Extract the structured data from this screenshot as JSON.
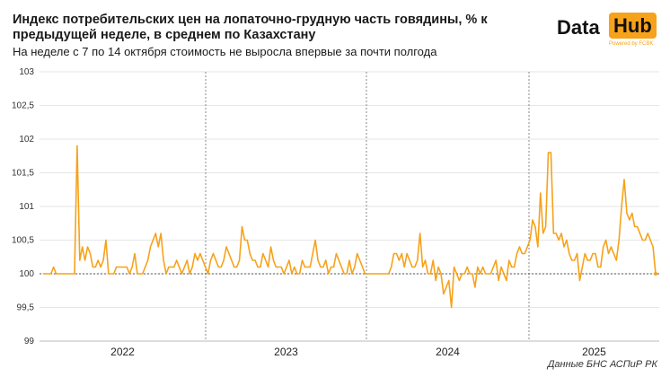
{
  "title": "Индекс потребительских цен на лопаточно-грудную часть говядины, % к предыдущей неделе, в среднем по Казахстану",
  "subtitle": "На неделе с 7 по 14 октября стоимость не выросла впервые за почти полгода",
  "logo": {
    "data": "Data",
    "hub": "Hub",
    "powered": "Powered by FCBK"
  },
  "source": "Данные БНС АСПиР РК",
  "colors": {
    "line": "#f6a21a",
    "grid": "#e6e6e6",
    "separator": "#888888",
    "ref": "#555555"
  },
  "chart_data": {
    "type": "line",
    "title": "Индекс потребительских цен на лопаточно-грудную часть говядины, % к предыдущей неделе, в среднем по Казахстану",
    "ylim": [
      99,
      103
    ],
    "yticks": [
      "99",
      "99,5",
      "100",
      "100,5",
      "101",
      "101,5",
      "102",
      "102,5",
      "103"
    ],
    "ytick_values": [
      99,
      99.5,
      100,
      100.5,
      101,
      101.5,
      102,
      102.5,
      103
    ],
    "reference_line": 100,
    "years": [
      "2022",
      "2023",
      "2024",
      "2025"
    ],
    "grid": true,
    "series": [
      {
        "values": [
          100.0,
          100.0,
          100.0,
          100.0,
          100.1,
          100.0,
          100.0,
          100.0,
          100.0,
          100.0,
          100.0,
          100.0,
          100.0,
          101.9,
          100.2,
          100.4,
          100.2,
          100.4,
          100.3,
          100.1,
          100.1,
          100.2,
          100.1,
          100.2,
          100.5,
          100.0,
          100.0,
          100.0,
          100.1,
          100.1,
          100.1,
          100.1,
          100.1,
          100.0,
          100.1,
          100.3,
          100.0,
          100.0,
          100.0,
          100.1,
          100.2,
          100.4,
          100.5,
          100.6,
          100.4,
          100.6,
          100.2,
          100.0,
          100.1,
          100.1,
          100.1,
          100.2,
          100.1,
          100.0,
          100.1,
          100.2,
          100.0,
          100.1,
          100.3,
          100.2,
          100.3,
          100.2,
          100.1,
          100.0,
          100.2,
          100.3,
          100.2,
          100.1,
          100.1,
          100.2,
          100.4,
          100.3,
          100.2,
          100.1,
          100.1,
          100.2,
          100.7,
          100.5,
          100.5,
          100.3,
          100.2,
          100.2,
          100.1,
          100.1,
          100.3,
          100.2,
          100.1,
          100.4,
          100.2,
          100.1,
          100.1,
          100.1,
          100.0,
          100.1,
          100.2,
          100.0,
          100.1,
          100.0,
          100.0,
          100.2,
          100.1,
          100.1,
          100.1,
          100.3,
          100.5,
          100.2,
          100.1,
          100.1,
          100.2,
          100.0,
          100.1,
          100.1,
          100.3,
          100.2,
          100.1,
          100.0,
          100.0,
          100.2,
          100.0,
          100.1,
          100.3,
          100.2,
          100.1,
          100.0,
          100.0,
          100.0,
          100.0,
          100.0,
          100.0,
          100.0,
          100.0,
          100.0,
          100.0,
          100.1,
          100.3,
          100.3,
          100.2,
          100.3,
          100.1,
          100.3,
          100.2,
          100.1,
          100.1,
          100.2,
          100.6,
          100.1,
          100.2,
          100.0,
          100.0,
          100.2,
          99.9,
          100.1,
          100.0,
          99.7,
          99.8,
          99.9,
          99.5,
          100.1,
          100.0,
          99.9,
          100.0,
          100.0,
          100.1,
          100.0,
          100.0,
          99.8,
          100.1,
          100.0,
          100.1,
          100.0,
          100.0,
          100.0,
          100.1,
          100.2,
          99.9,
          100.1,
          100.0,
          99.9,
          100.2,
          100.1,
          100.1,
          100.3,
          100.4,
          100.3,
          100.3,
          100.4,
          100.5,
          100.8,
          100.7,
          100.4,
          101.2,
          100.6,
          100.7,
          101.8,
          101.8,
          100.6,
          100.6,
          100.5,
          100.6,
          100.4,
          100.5,
          100.3,
          100.2,
          100.2,
          100.3,
          99.9,
          100.1,
          100.3,
          100.2,
          100.2,
          100.3,
          100.3,
          100.1,
          100.1,
          100.4,
          100.5,
          100.3,
          100.4,
          100.3,
          100.2,
          100.5,
          101.0,
          101.4,
          100.9,
          100.8,
          100.9,
          100.7,
          100.7,
          100.6,
          100.5,
          100.5,
          100.6,
          100.5,
          100.4,
          100.0
        ]
      }
    ]
  }
}
